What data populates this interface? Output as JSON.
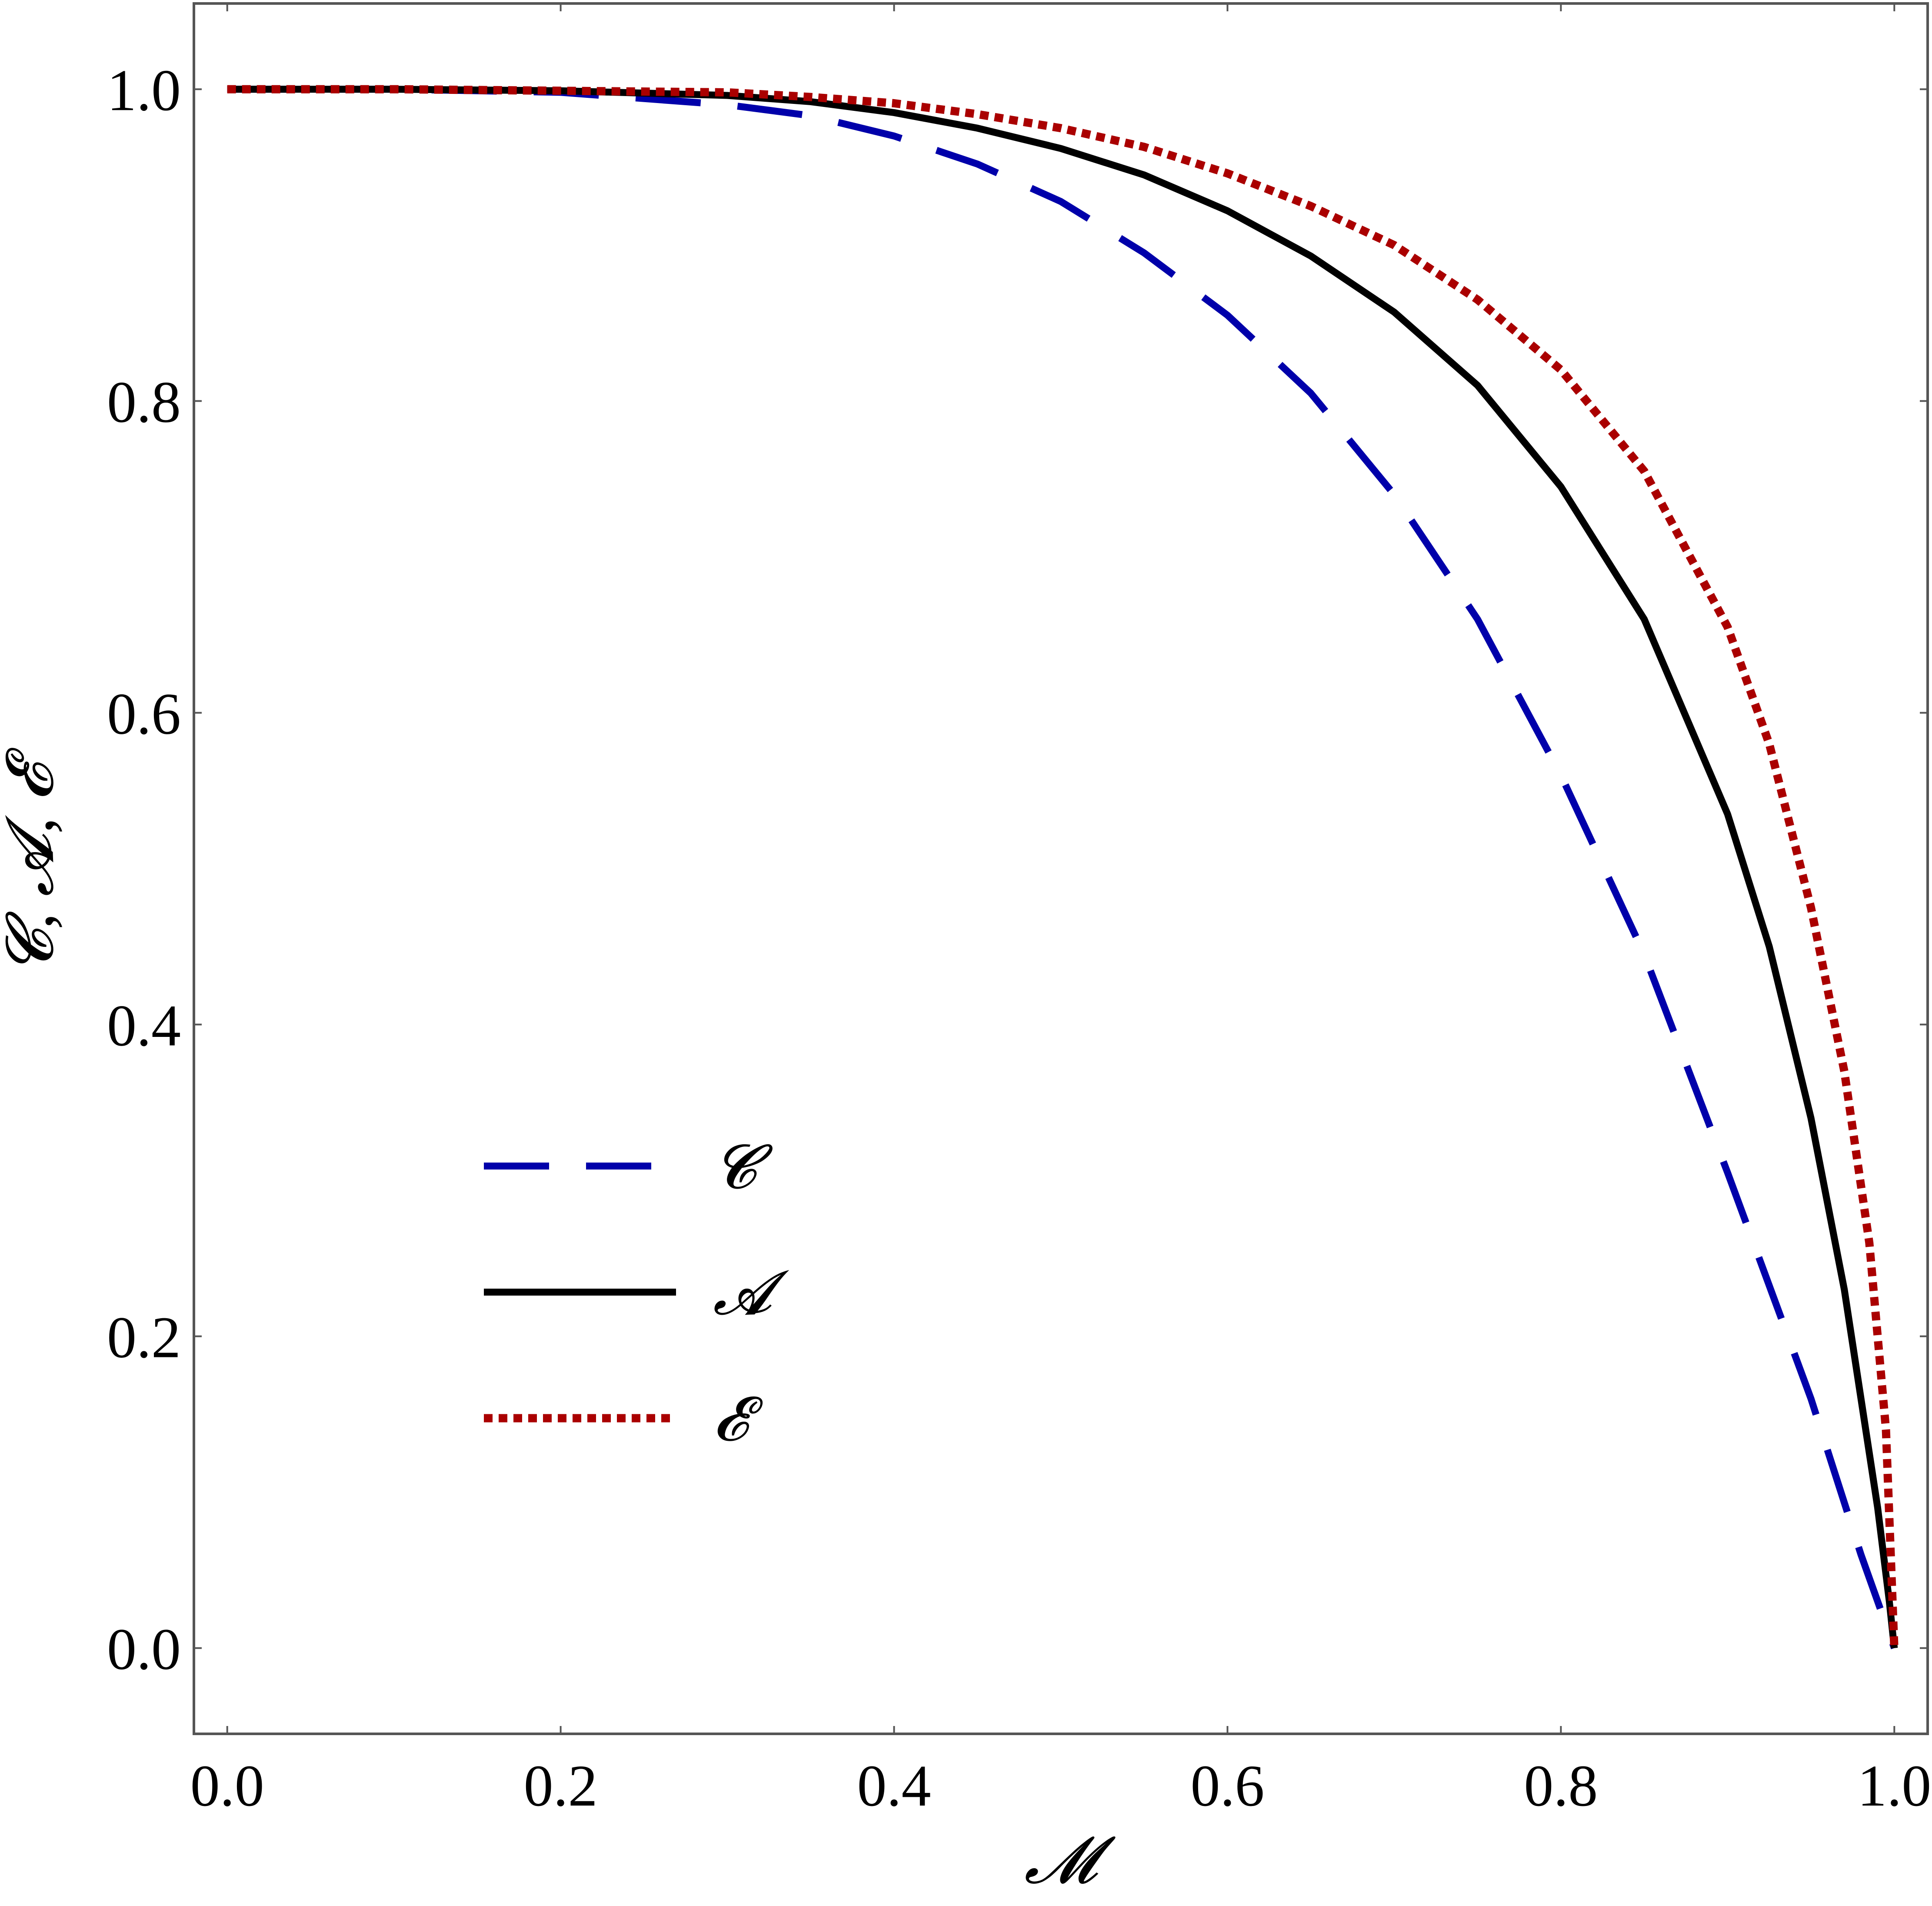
{
  "chart_data": {
    "type": "line",
    "xlabel": "𝓜",
    "ylabel": "𝓒, 𝓐, 𝓔",
    "xlim": [
      -0.02,
      1.02
    ],
    "ylim": [
      -0.055,
      1.055
    ],
    "xticks": [
      "0.0",
      "0.2",
      "0.4",
      "0.6",
      "0.8",
      "1.0"
    ],
    "yticks": [
      "0.0",
      "0.2",
      "0.4",
      "0.6",
      "0.8",
      "1.0"
    ],
    "grid": false,
    "legend_position": "lower-left",
    "series": [
      {
        "name": "𝓒",
        "style": "dashed",
        "color": "#0000aa",
        "x": [
          0,
          0.1,
          0.2,
          0.3,
          0.35,
          0.4,
          0.45,
          0.5,
          0.55,
          0.6,
          0.65,
          0.7,
          0.75,
          0.8,
          0.85,
          0.9,
          0.95,
          0.98,
          1.0
        ],
        "y": [
          1.0,
          1.0,
          0.998,
          0.99,
          0.983,
          0.97,
          0.952,
          0.928,
          0.895,
          0.855,
          0.805,
          0.74,
          0.66,
          0.56,
          0.445,
          0.305,
          0.16,
          0.06,
          0.0
        ]
      },
      {
        "name": "𝓐",
        "style": "solid",
        "color": "#000000",
        "x": [
          0,
          0.1,
          0.2,
          0.3,
          0.35,
          0.4,
          0.45,
          0.5,
          0.55,
          0.6,
          0.65,
          0.7,
          0.75,
          0.8,
          0.85,
          0.9,
          0.925,
          0.95,
          0.97,
          0.99,
          0.997,
          1.0
        ],
        "y": [
          1.0,
          1.0,
          0.999,
          0.996,
          0.992,
          0.985,
          0.975,
          0.962,
          0.945,
          0.922,
          0.893,
          0.857,
          0.81,
          0.745,
          0.66,
          0.535,
          0.45,
          0.34,
          0.23,
          0.09,
          0.03,
          0.0
        ]
      },
      {
        "name": "𝓔",
        "style": "dotted",
        "color": "#aa0000",
        "x": [
          0,
          0.1,
          0.2,
          0.3,
          0.35,
          0.4,
          0.45,
          0.5,
          0.55,
          0.6,
          0.65,
          0.7,
          0.75,
          0.8,
          0.85,
          0.9,
          0.925,
          0.95,
          0.97,
          0.985,
          0.995,
          1.0
        ],
        "y": [
          1.0,
          1.0,
          0.999,
          0.998,
          0.995,
          0.991,
          0.984,
          0.975,
          0.963,
          0.946,
          0.925,
          0.9,
          0.865,
          0.82,
          0.755,
          0.655,
          0.58,
          0.475,
          0.37,
          0.26,
          0.14,
          0.0
        ]
      }
    ]
  }
}
